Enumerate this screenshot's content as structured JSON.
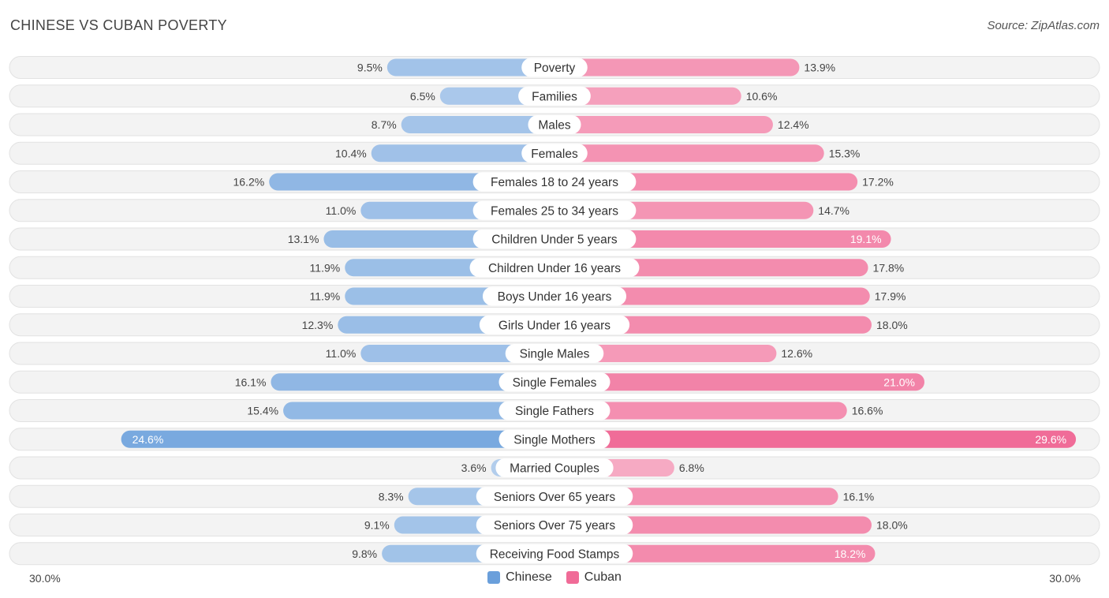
{
  "header": {
    "title": "CHINESE VS CUBAN POVERTY",
    "source": "Source: ZipAtlas.com"
  },
  "colors": {
    "chinese": "#6a9fdb",
    "cuban": "#f06b97",
    "row_bg": "#efefef"
  },
  "chart_data": {
    "type": "bar",
    "orientation": "horizontal-diverging",
    "categories": [
      "Poverty",
      "Families",
      "Males",
      "Females",
      "Females 18 to 24 years",
      "Females 25 to 34 years",
      "Children Under 5 years",
      "Children Under 16 years",
      "Boys Under 16 years",
      "Girls Under 16 years",
      "Single Males",
      "Single Females",
      "Single Fathers",
      "Single Mothers",
      "Married Couples",
      "Seniors Over 65 years",
      "Seniors Over 75 years",
      "Receiving Food Stamps"
    ],
    "series": [
      {
        "name": "Chinese",
        "values": [
          9.5,
          6.5,
          8.7,
          10.4,
          16.2,
          11.0,
          13.1,
          11.9,
          11.9,
          12.3,
          11.0,
          16.1,
          15.4,
          24.6,
          3.6,
          8.3,
          9.1,
          9.8
        ],
        "labels": [
          "9.5%",
          "6.5%",
          "8.7%",
          "10.4%",
          "16.2%",
          "11.0%",
          "13.1%",
          "11.9%",
          "11.9%",
          "12.3%",
          "11.0%",
          "16.1%",
          "15.4%",
          "24.6%",
          "3.6%",
          "8.3%",
          "9.1%",
          "9.8%"
        ]
      },
      {
        "name": "Cuban",
        "values": [
          13.9,
          10.6,
          12.4,
          15.3,
          17.2,
          14.7,
          19.1,
          17.8,
          17.9,
          18.0,
          12.6,
          21.0,
          16.6,
          29.6,
          6.8,
          16.1,
          18.0,
          18.2
        ],
        "labels": [
          "13.9%",
          "10.6%",
          "12.4%",
          "15.3%",
          "17.2%",
          "14.7%",
          "19.1%",
          "17.8%",
          "17.9%",
          "18.0%",
          "12.6%",
          "21.0%",
          "16.6%",
          "29.6%",
          "6.8%",
          "16.1%",
          "18.0%",
          "18.2%"
        ]
      }
    ],
    "xlim": [
      0,
      30.0
    ],
    "axis_labels": {
      "left": "30.0%",
      "right": "30.0%"
    },
    "legend": [
      "Chinese",
      "Cuban"
    ],
    "legend_position": "bottom-center"
  }
}
